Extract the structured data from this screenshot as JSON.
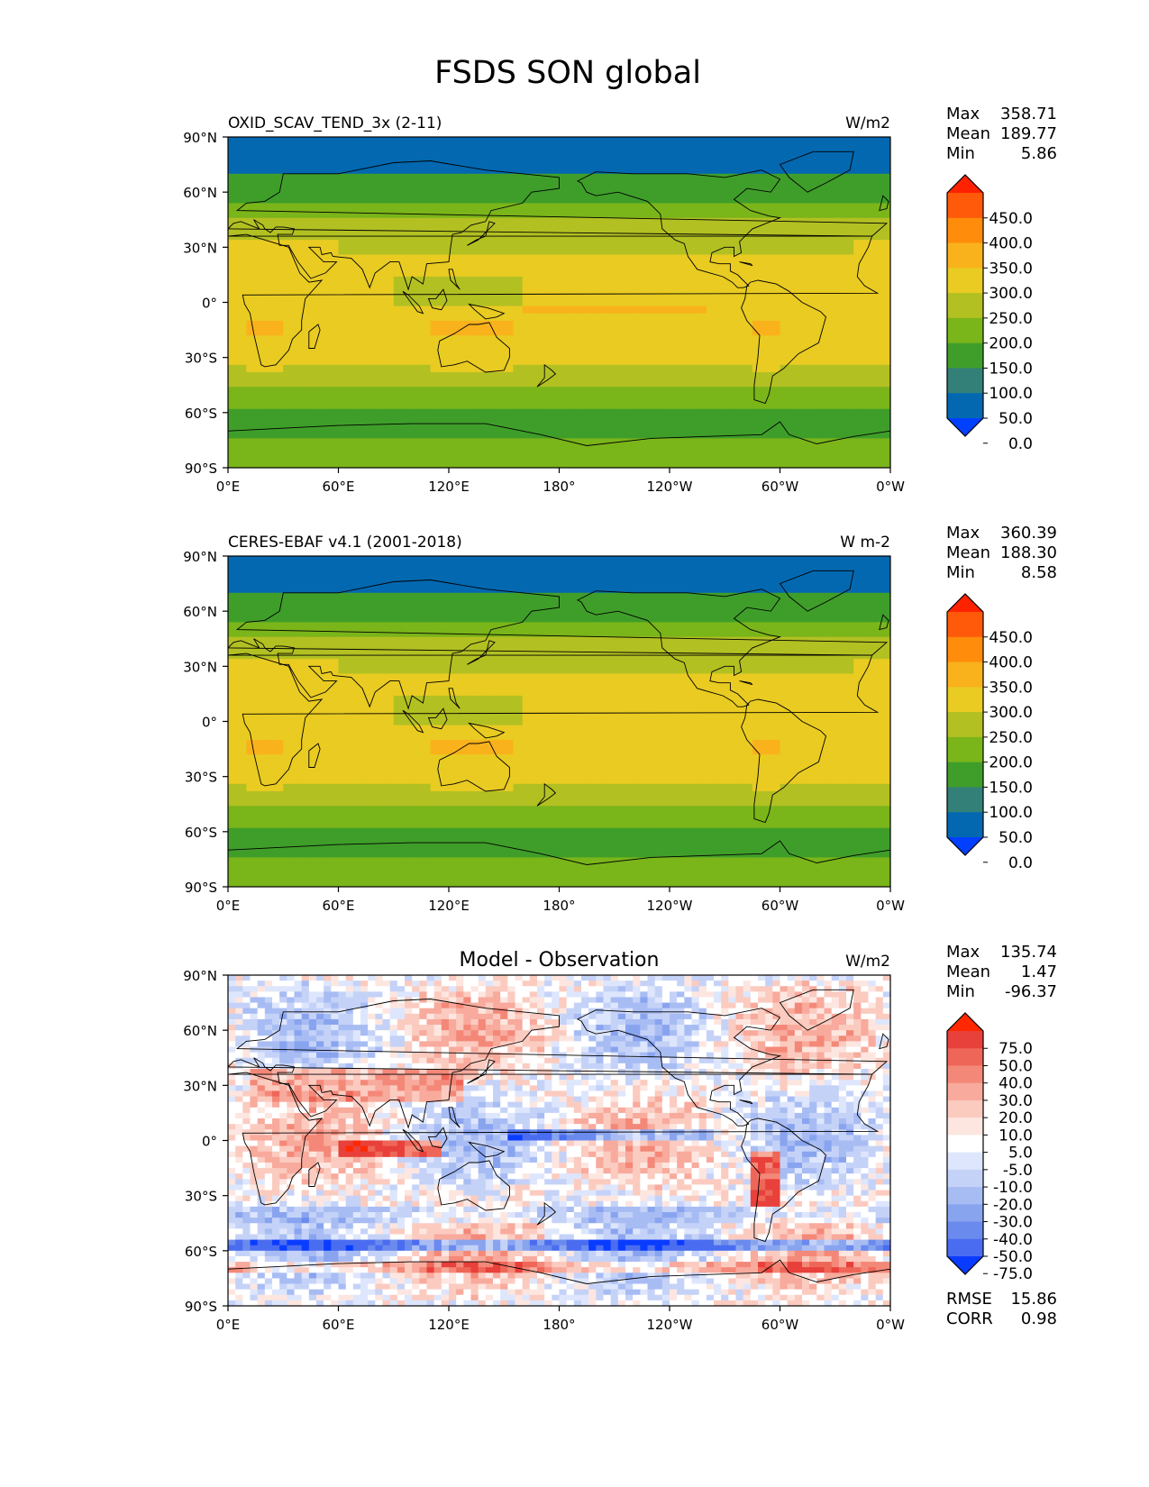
{
  "figure": {
    "title": "FSDS SON global"
  },
  "axes": {
    "lat_ticks": [
      "90°N",
      "60°N",
      "30°N",
      "0°",
      "30°S",
      "60°S",
      "90°S"
    ],
    "lon_ticks": [
      "0°E",
      "60°E",
      "120°E",
      "180°",
      "120°W",
      "60°W",
      "0°W"
    ]
  },
  "panels": [
    {
      "id": "model",
      "title": "OXID_SCAV_TEND_3x (2-11)",
      "units": "W/m2",
      "stats": {
        "max_label": "Max",
        "max": "358.71",
        "mean_label": "Mean",
        "mean": "189.77",
        "min_label": "Min",
        "min": "5.86"
      },
      "colorbar": {
        "labels": [
          "450.0",
          "400.0",
          "350.0",
          "300.0",
          "250.0",
          "200.0",
          "150.0",
          "100.0",
          "50.0",
          "0.0"
        ],
        "colors": [
          "#ff2200",
          "#ff5a0a",
          "#ff8c0a",
          "#f9b21c",
          "#e9cb22",
          "#b2c022",
          "#7ab51a",
          "#3f9e2a",
          "#338079",
          "#0368b0",
          "#0140ff"
        ]
      }
    },
    {
      "id": "obs",
      "title": "CERES-EBAF v4.1 (2001-2018)",
      "units": "W m-2",
      "stats": {
        "max_label": "Max",
        "max": "360.39",
        "mean_label": "Mean",
        "mean": "188.30",
        "min_label": "Min",
        "min": "8.58"
      },
      "colorbar": {
        "labels": [
          "450.0",
          "400.0",
          "350.0",
          "300.0",
          "250.0",
          "200.0",
          "150.0",
          "100.0",
          "50.0",
          "0.0"
        ],
        "colors": [
          "#ff2200",
          "#ff5a0a",
          "#ff8c0a",
          "#f9b21c",
          "#e9cb22",
          "#b2c022",
          "#7ab51a",
          "#3f9e2a",
          "#338079",
          "#0368b0",
          "#0140ff"
        ]
      }
    },
    {
      "id": "diff",
      "title": "Model - Observation",
      "units": "W/m2",
      "stats": {
        "max_label": "Max",
        "max": "135.74",
        "mean_label": "Mean",
        "mean": "1.47",
        "min_label": "Min",
        "min": "-96.37"
      },
      "extra": {
        "rmse_label": "RMSE",
        "rmse": "15.86",
        "corr_label": "CORR",
        "corr": "0.98"
      },
      "colorbar": {
        "labels": [
          "75.0",
          "50.0",
          "40.0",
          "30.0",
          "20.0",
          "10.0",
          "5.0",
          "-5.0",
          "-10.0",
          "-20.0",
          "-30.0",
          "-40.0",
          "-50.0",
          "-75.0"
        ],
        "colors": [
          "#ff2800",
          "#e8403a",
          "#ee6658",
          "#f48878",
          "#f8aa9c",
          "#fbcbc0",
          "#fde6e0",
          "#ffffff",
          "#dde6fc",
          "#c5d2f8",
          "#a8bcf4",
          "#89a4ef",
          "#6a8aee",
          "#4a6cf0",
          "#0a3cff"
        ]
      }
    }
  ]
}
